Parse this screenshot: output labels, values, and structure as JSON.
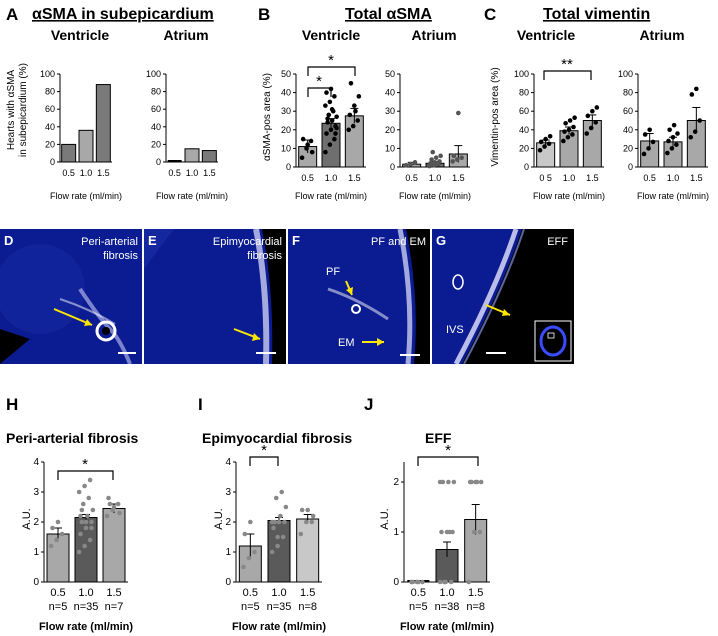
{
  "panels": {
    "A": {
      "letter": "A",
      "title": "αSMA in subepicardium",
      "ylabel_1": "Hearts with αSMA",
      "ylabel_2": "in subepicardium (%)"
    },
    "B": {
      "letter": "B",
      "title": "Total αSMA",
      "ylabel": "αSMA-pos area (%)"
    },
    "C": {
      "letter": "C",
      "title": "Total vimentin",
      "ylabel": "Vimentin-pos area (%)"
    },
    "D": {
      "letter": "D",
      "label_1": "Peri-arterial",
      "label_2": "fibrosis"
    },
    "E": {
      "letter": "E",
      "label_1": "Epimyocardial",
      "label_2": "fibrosis"
    },
    "F": {
      "letter": "F",
      "label": "PF and EM",
      "tag_pf": "PF",
      "tag_em": "EM"
    },
    "G": {
      "letter": "G",
      "label": "EFF",
      "tag_ivs": "IVS"
    },
    "H": {
      "letter": "H",
      "title": "Peri-arterial fibrosis",
      "ylabel": "A.U."
    },
    "I": {
      "letter": "I",
      "title": "Epimyocardial fibrosis",
      "ylabel": "A.U."
    },
    "J": {
      "letter": "J",
      "title": "EFF",
      "ylabel": "A.U."
    }
  },
  "common": {
    "ventricle": "Ventricle",
    "atrium": "Atrium",
    "xlabel": "Flow rate (ml/min)",
    "star": "*",
    "double_star": "**"
  },
  "chart_data": [
    {
      "id": "A-ventricle",
      "type": "bar",
      "title": "Ventricle",
      "categories": [
        "0.5",
        "1.0",
        "1.5"
      ],
      "values": [
        20,
        36,
        88
      ],
      "yticks": [
        "0",
        "20",
        "40",
        "60",
        "80",
        "100"
      ],
      "ylim": [
        0,
        100
      ],
      "xlabel": "Flow rate (ml/min)"
    },
    {
      "id": "A-atrium",
      "type": "bar",
      "title": "Atrium",
      "categories": [
        "0.5",
        "1.0",
        "1.5"
      ],
      "values": [
        0,
        15,
        13
      ],
      "yticks": [
        "0",
        "20",
        "40",
        "60",
        "80",
        "100"
      ],
      "ylim": [
        0,
        100
      ],
      "xlabel": "Flow rate (ml/min)"
    },
    {
      "id": "B-ventricle",
      "type": "bar",
      "title": "Ventricle",
      "categories": [
        "0.5",
        "1.0",
        "1.5"
      ],
      "values": [
        11,
        23.5,
        27.5
      ],
      "errors": [
        3.5,
        2.5,
        4
      ],
      "yticks": [
        "0",
        "10",
        "20",
        "30",
        "40",
        "50"
      ],
      "ylim": [
        0,
        50
      ],
      "xlabel": "Flow rate (ml/min)"
    },
    {
      "id": "B-atrium",
      "type": "bar",
      "title": "Atrium",
      "categories": [
        "0.5",
        "1.0",
        "1.5"
      ],
      "values": [
        1.5,
        2,
        7
      ],
      "errors": [
        1,
        0.8,
        4.5
      ],
      "yticks": [
        "0",
        "10",
        "20",
        "30",
        "40",
        "50"
      ],
      "ylim": [
        0,
        50
      ],
      "xlabel": "Flow rate (ml/min)"
    },
    {
      "id": "C-ventricle",
      "type": "bar",
      "title": "Ventricle",
      "categories": [
        "0 5",
        "1.0",
        "1.5"
      ],
      "values": [
        26,
        39,
        50
      ],
      "errors": [
        3,
        4,
        6
      ],
      "yticks": [
        "0",
        "20",
        "40",
        "60",
        "80",
        "100"
      ],
      "ylim": [
        0,
        100
      ],
      "xlabel": "Flow rate (ml/min)"
    },
    {
      "id": "C-atrium",
      "type": "bar",
      "title": "Atrium",
      "categories": [
        "0.5",
        "1.0",
        "1.5"
      ],
      "values": [
        28,
        27,
        50
      ],
      "errors": [
        8,
        5,
        14
      ],
      "yticks": [
        "0",
        "20",
        "40",
        "60",
        "80",
        "100"
      ],
      "ylim": [
        0,
        100
      ],
      "xlabel": "Flow rate (ml/min)"
    },
    {
      "id": "H",
      "type": "bar",
      "title": "Peri-arterial fibrosis",
      "categories": [
        "0.5\nn=5",
        "1.0\nn=35",
        "1.5\nn=7"
      ],
      "values": [
        1.6,
        2.15,
        2.45
      ],
      "errors": [
        0.2,
        0.1,
        0.15
      ],
      "yticks": [
        "0",
        "1",
        "2",
        "3",
        "4"
      ],
      "ylim": [
        0,
        4
      ],
      "xlabel": "Flow rate (ml/min)"
    },
    {
      "id": "I",
      "type": "bar",
      "title": "Epimyocardial fibrosis",
      "categories": [
        "0.5\nn=5",
        "1.0\nn=35",
        "1.5\nn=8"
      ],
      "values": [
        1.2,
        2.05,
        2.1
      ],
      "errors": [
        0.4,
        0.1,
        0.15
      ],
      "yticks": [
        "0",
        "1",
        "2",
        "3",
        "4"
      ],
      "ylim": [
        0,
        4
      ],
      "xlabel": "Flow rate (ml/min)"
    },
    {
      "id": "J",
      "type": "bar",
      "title": "EFF",
      "categories": [
        "0.5\nn=5",
        "1.0\nn=38",
        "1.5\nn=8"
      ],
      "values": [
        0,
        0.65,
        1.25
      ],
      "errors": [
        0,
        0.15,
        0.3
      ],
      "yticks": [
        "0",
        "1",
        "2"
      ],
      "ylim": [
        0,
        2.4
      ],
      "xlabel": "Flow rate (ml/min)"
    }
  ]
}
